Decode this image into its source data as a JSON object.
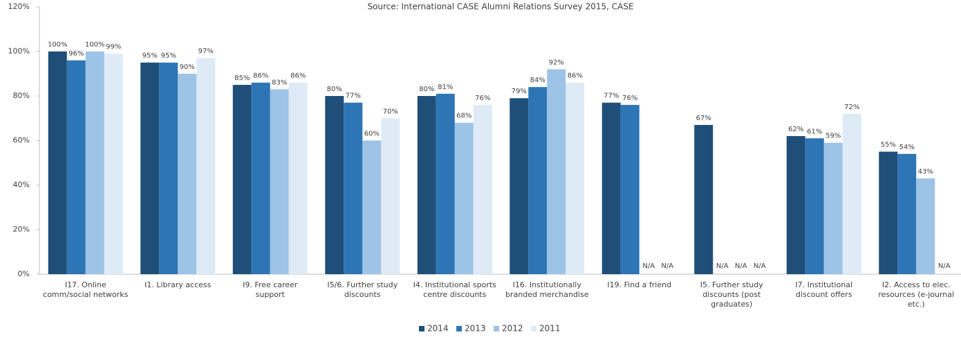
{
  "chart_data": {
    "type": "bar",
    "title": "Source: International CASE Alumni Relations Survey 2015, CASE",
    "categories": [
      "I17. Online comm/social networks",
      "I1. Library access",
      "I9. Free career support",
      "I5/6. Further study discounts",
      "I4. Institutional sports centre discounts",
      "I16. Institutionally branded merchandise",
      "I19. Find a friend",
      "I5. Further study discounts (post graduates)",
      "I7. Institutional discount offers",
      "I2. Access to elec. resources (e-journal etc.)"
    ],
    "series": [
      {
        "name": "2014",
        "color": "#1f4e79",
        "values": [
          100,
          95,
          85,
          80,
          80,
          79,
          77,
          67,
          62,
          55
        ],
        "value_labels": [
          "100%",
          "95%",
          "85%",
          "80%",
          "80%",
          "79%",
          "77%",
          "67%",
          "62%",
          "55%"
        ]
      },
      {
        "name": "2013",
        "color": "#2e75b6",
        "values": [
          96,
          95,
          86,
          77,
          81,
          84,
          76,
          null,
          61,
          54
        ],
        "value_labels": [
          "96%",
          "95%",
          "86%",
          "77%",
          "81%",
          "84%",
          "76%",
          "N/A",
          "61%",
          "54%"
        ]
      },
      {
        "name": "2012",
        "color": "#9dc3e6",
        "values": [
          100,
          90,
          83,
          60,
          68,
          92,
          null,
          null,
          59,
          43
        ],
        "value_labels": [
          "100%",
          "90%",
          "83%",
          "60%",
          "68%",
          "92%",
          "N/A",
          "N/A",
          "59%",
          "43%"
        ]
      },
      {
        "name": "2011",
        "color": "#deebf7",
        "values": [
          99,
          97,
          86,
          70,
          76,
          86,
          null,
          null,
          72,
          null
        ],
        "value_labels": [
          "99%",
          "97%",
          "86%",
          "70%",
          "76%",
          "86%",
          "N/A",
          "N/A",
          "72%",
          "N/A"
        ]
      }
    ],
    "ylim": [
      0,
      120
    ],
    "yticks": [
      {
        "value": 0,
        "label": "0%"
      },
      {
        "value": 20,
        "label": "20%"
      },
      {
        "value": 40,
        "label": "40%"
      },
      {
        "value": 60,
        "label": "60%"
      },
      {
        "value": 80,
        "label": "80%"
      },
      {
        "value": 100,
        "label": "100%"
      },
      {
        "value": 120,
        "label": "120%"
      }
    ],
    "legend": "bottom",
    "grid": false
  }
}
